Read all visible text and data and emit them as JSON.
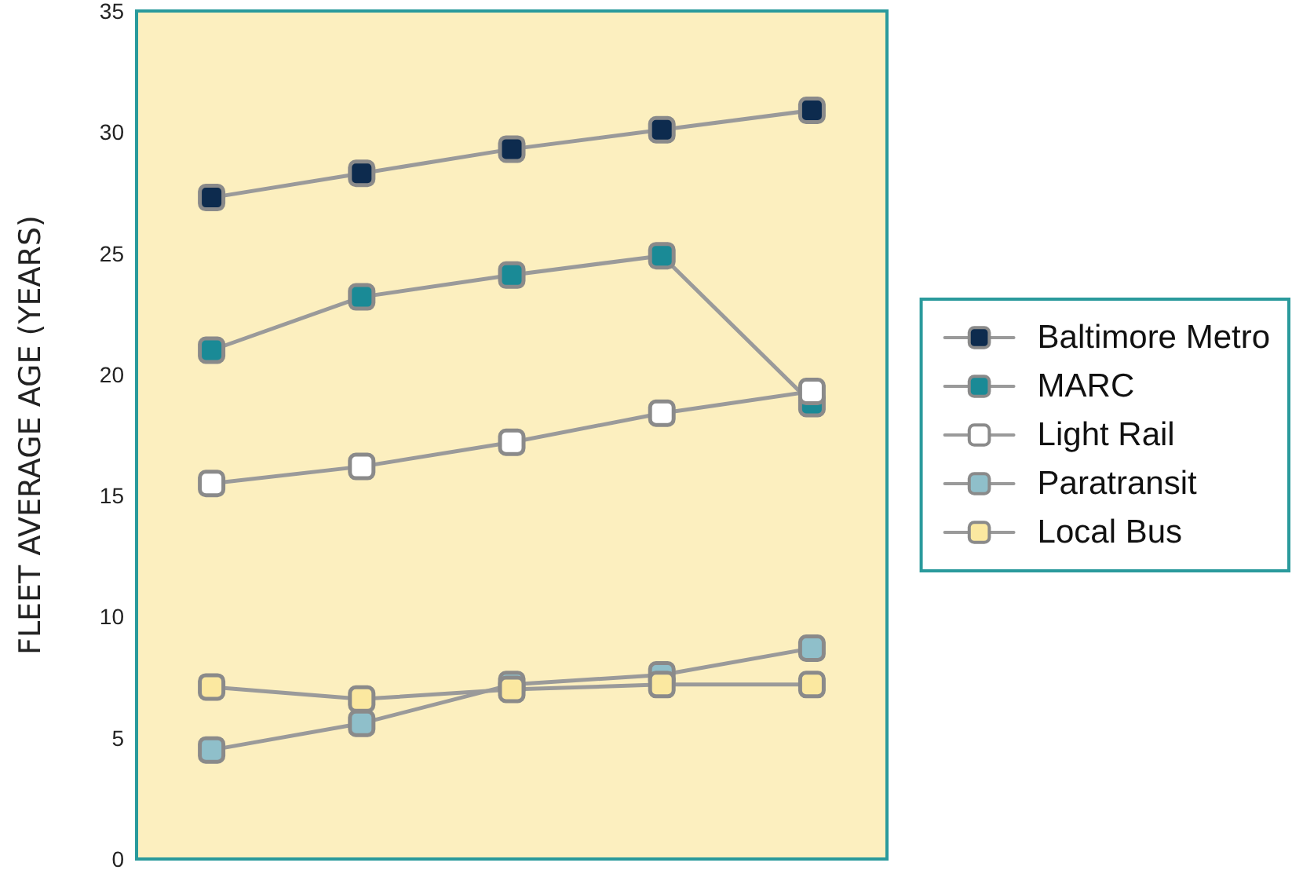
{
  "chart_data": {
    "type": "line",
    "ylabel": "FLEET AVERAGE AGE (YEARS)",
    "categories": [
      null,
      null,
      null,
      null,
      null
    ],
    "series": [
      {
        "name": "Baltimore Metro",
        "color": "#9a9a9a",
        "colors": [
          "#0d2b4e",
          "#0d2b4e",
          "#0d2b4e",
          "#0d2b4e",
          "#0d2b4e"
        ],
        "values": [
          27.3,
          28.3,
          29.3,
          30.1,
          30.9
        ]
      },
      {
        "name": "MARC",
        "color": "#9a9a9a",
        "colors": [
          "#1a8a96",
          "#1a8a96",
          "#1a8a96",
          "#1a8a96",
          "#1a8a96"
        ],
        "values": [
          21.0,
          23.2,
          24.1,
          24.9,
          18.8
        ]
      },
      {
        "name": "Light Rail",
        "color": "#9a9a9a",
        "colors": [
          "#ffffff",
          "#ffffff",
          "#ffffff",
          "#ffffff",
          "#ffffff"
        ],
        "values": [
          15.5,
          16.2,
          17.2,
          18.4,
          19.3
        ]
      },
      {
        "name": "Paratransit",
        "color": "#9a9a9a",
        "colors": [
          "#8fbfca",
          "#8fbfca",
          "#8fbfca",
          "#8fbfca",
          "#8fbfca"
        ],
        "values": [
          4.5,
          5.6,
          7.2,
          7.6,
          8.7
        ]
      },
      {
        "name": "Local Bus",
        "color": "#9a9a9a",
        "colors": [
          "#fbe8a0",
          "#fbe8a0",
          "#fbe8a0",
          "#fbe8a0",
          "#fbe8a0"
        ],
        "values": [
          7.1,
          6.6,
          7.0,
          7.2,
          7.2
        ]
      }
    ],
    "ylim": [
      0,
      35
    ],
    "yticks": [
      0,
      5,
      10,
      15,
      20,
      25,
      30,
      35
    ],
    "tick_labels": "y",
    "grid": false,
    "legend": "right",
    "marker": "square",
    "line_style": "solid"
  }
}
